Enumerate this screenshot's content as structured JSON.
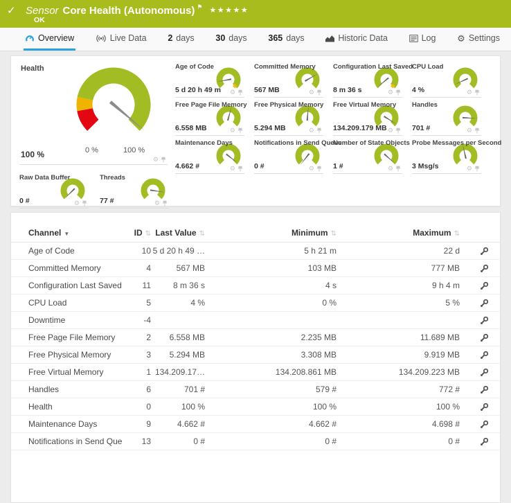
{
  "header": {
    "check_icon": "check-icon",
    "kind": "Sensor",
    "title": "Core Health (Autonomous)",
    "flag": "⚑",
    "stars": "★★★★★",
    "status": "OK"
  },
  "tabs": [
    {
      "label": "Overview",
      "icon": "gauge-icon",
      "active": true
    },
    {
      "label": "Live Data",
      "icon": "live-signal-icon"
    },
    {
      "prefix": "2",
      "label": "days"
    },
    {
      "prefix": "30",
      "label": "days"
    },
    {
      "prefix": "365",
      "label": "days"
    },
    {
      "label": "Historic Data",
      "icon": "area-chart-icon"
    },
    {
      "label": "Log",
      "icon": "log-icon"
    },
    {
      "label": "Settings",
      "icon": "gear-icon"
    }
  ],
  "colors": {
    "brand_green": "#a8bc1e",
    "accent_blue": "#2da3dd",
    "gauge_green": "#a2bd23",
    "gauge_yellow": "#f0b400",
    "gauge_red": "#e30613",
    "marker_orange": "#fdb913"
  },
  "health_gauge": {
    "title": "Health",
    "value": "100 %",
    "scale_min": "0 %",
    "scale_max": "100 %",
    "needle_deg": -40,
    "segments": [
      {
        "from": 225,
        "to": 190,
        "color": "#e30613"
      },
      {
        "from": 190,
        "to": 168,
        "color": "#f0b400"
      },
      {
        "from": 168,
        "to": -45,
        "color": "#a2bd23"
      }
    ]
  },
  "small_gauges": [
    {
      "title": "Age of Code",
      "value": "5 d 20 h 49 m",
      "needle_deg": 190,
      "marker": true
    },
    {
      "title": "Committed Memory",
      "value": "567 MB",
      "needle_deg": 30,
      "marker": false
    },
    {
      "title": "Configuration Last Saved",
      "value": "8 m 36 s",
      "needle_deg": 220,
      "marker": true
    },
    {
      "title": "CPU Load",
      "value": "4 %",
      "needle_deg": 205,
      "marker": false
    },
    {
      "title": "Free Page File Memory",
      "value": "6.558 MB",
      "needle_deg": 75,
      "marker": false
    },
    {
      "title": "Free Physical Memory",
      "value": "5.294 MB",
      "needle_deg": 85,
      "marker": false
    },
    {
      "title": "Free Virtual Memory",
      "value": "134.209.179 MB",
      "needle_deg": -32,
      "marker": false
    },
    {
      "title": "Handles",
      "value": "701 #",
      "needle_deg": -3,
      "marker": false
    },
    {
      "title": "Maintenance Days",
      "value": "4.662 #",
      "needle_deg": -38,
      "marker": false
    },
    {
      "title": "Notifications in Send Queue",
      "value": "0 #",
      "needle_deg": 232,
      "marker": false
    },
    {
      "title": "Number of State Objects",
      "value": "1 #",
      "needle_deg": -42,
      "marker": false
    },
    {
      "title": "Probe Messages per Second",
      "value": "3 Msg/s",
      "needle_deg": 103,
      "marker": false
    }
  ],
  "bottom_gauges": [
    {
      "title": "Raw Data Buffer",
      "value": "0 #",
      "needle_deg": 225,
      "marker": false
    },
    {
      "title": "Threads",
      "value": "77 #",
      "needle_deg": -8,
      "marker": false
    }
  ],
  "table": {
    "columns": [
      {
        "label": "Channel",
        "sorted": true
      },
      {
        "label": "ID"
      },
      {
        "label": "Last Value"
      },
      {
        "label": "Minimum"
      },
      {
        "label": "Maximum"
      }
    ],
    "rows": [
      {
        "cells": [
          "Age of Code",
          "10",
          "5 d 20 h 49 …",
          "5 h 21 m",
          "22 d"
        ]
      },
      {
        "cells": [
          "Committed Memory",
          "4",
          "567 MB",
          "103 MB",
          "777 MB"
        ]
      },
      {
        "cells": [
          "Configuration Last Saved",
          "11",
          "8 m 36 s",
          "4 s",
          "9 h 4 m"
        ]
      },
      {
        "cells": [
          "CPU Load",
          "5",
          "4 %",
          "0 %",
          "5 %"
        ]
      },
      {
        "cells": [
          "Downtime",
          "-4",
          "",
          "",
          ""
        ]
      },
      {
        "cells": [
          "Free Page File Memory",
          "2",
          "6.558 MB",
          "2.235 MB",
          "11.689 MB"
        ]
      },
      {
        "cells": [
          "Free Physical Memory",
          "3",
          "5.294 MB",
          "3.308 MB",
          "9.919 MB"
        ]
      },
      {
        "cells": [
          "Free Virtual Memory",
          "1",
          "134.209.17…",
          "134.208.861 MB",
          "134.209.223 MB"
        ]
      },
      {
        "cells": [
          "Handles",
          "6",
          "701 #",
          "579 #",
          "772 #"
        ]
      },
      {
        "cells": [
          "Health",
          "0",
          "100 %",
          "100 %",
          "100 %"
        ]
      },
      {
        "cells": [
          "Maintenance Days",
          "9",
          "4.662 #",
          "4.662 #",
          "4.698 #"
        ]
      },
      {
        "cells": [
          "Notifications in Send Queue",
          "13",
          "0 #",
          "0 #",
          "0 #"
        ]
      }
    ]
  }
}
